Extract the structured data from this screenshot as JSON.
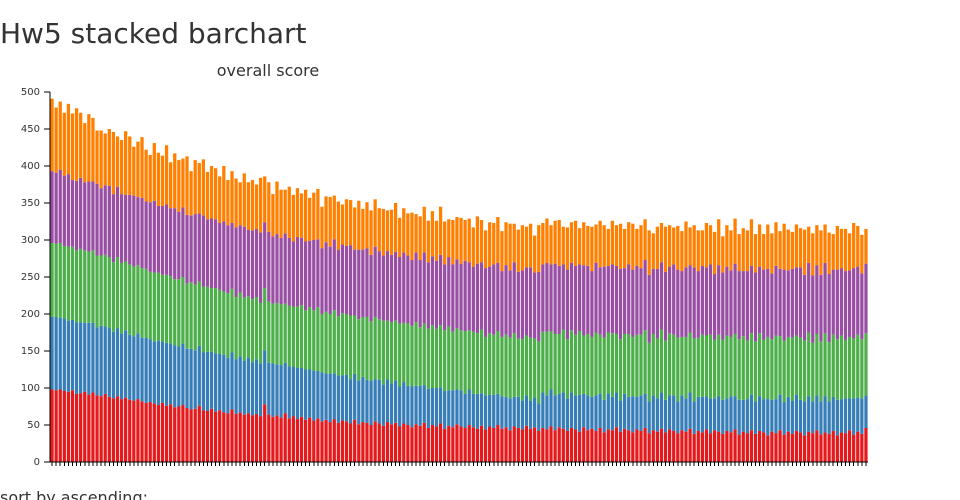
{
  "chart_data": {
    "type": "stacked_bar",
    "title": "Hw5 stacked barchart",
    "subtitle": "overall score",
    "footer": "sort by ascending:",
    "categories": [
      null,
      null,
      null,
      null,
      null,
      null,
      null,
      null,
      null,
      null,
      null,
      null,
      null,
      null,
      null,
      null,
      null,
      null,
      null,
      null,
      null,
      null,
      null,
      null,
      null,
      null,
      null,
      null,
      null,
      null,
      null,
      null,
      null,
      null,
      null,
      null,
      null,
      null,
      null,
      null,
      null,
      null,
      null,
      null,
      null,
      null,
      null,
      null,
      null,
      null,
      null,
      null,
      null,
      null,
      null,
      null,
      null,
      null,
      null,
      null,
      null,
      null,
      null,
      null,
      null,
      null,
      null,
      null,
      null,
      null,
      null,
      null,
      null,
      null,
      null,
      null,
      null,
      null,
      null,
      null,
      null,
      null,
      null,
      null,
      null,
      null,
      null,
      null,
      null,
      null,
      null,
      null,
      null,
      null,
      null,
      null,
      null,
      null,
      null,
      null,
      null,
      null,
      null,
      null,
      null,
      null,
      null,
      null,
      null,
      null,
      null,
      null,
      null,
      null,
      null,
      null,
      null,
      null,
      null,
      null,
      null,
      null,
      null,
      null,
      null,
      null,
      null,
      null,
      null,
      null,
      null,
      null,
      null,
      null,
      null,
      null,
      null,
      null,
      null,
      null,
      null,
      null,
      null,
      null,
      null,
      null,
      null,
      null,
      null,
      null,
      null,
      null,
      null,
      null,
      null,
      null,
      null,
      null,
      null,
      null,
      null,
      null,
      null,
      null,
      null,
      null,
      null,
      null,
      null,
      null,
      null,
      null,
      null,
      null,
      null,
      null,
      null,
      null,
      null,
      null,
      null,
      null,
      null,
      null,
      null,
      null,
      null,
      null,
      null,
      null,
      null,
      null,
      null,
      null,
      null,
      null,
      null,
      null,
      null,
      null
    ],
    "series": [
      {
        "color": "#e41a1c",
        "values": [
          98,
          97,
          98,
          96,
          95,
          97,
          92,
          93,
          95,
          91,
          94,
          90,
          89,
          92,
          88,
          86,
          89,
          85,
          87,
          84,
          83,
          85,
          82,
          80,
          81,
          79,
          77,
          80,
          76,
          78,
          74,
          75,
          77,
          73,
          71,
          72,
          76,
          70,
          69,
          72,
          68,
          70,
          67,
          66,
          71,
          65,
          67,
          64,
          66,
          63,
          65,
          62,
          78,
          64,
          61,
          63,
          60,
          66,
          59,
          62,
          58,
          61,
          57,
          60,
          56,
          59,
          55,
          57,
          54,
          58,
          53,
          56,
          55,
          52,
          57,
          51,
          54,
          53,
          50,
          55,
          52,
          49,
          54,
          51,
          53,
          48,
          52,
          50,
          47,
          51,
          49,
          53,
          46,
          50,
          48,
          52,
          45,
          49,
          47,
          51,
          48,
          46,
          50,
          47,
          45,
          49,
          44,
          48,
          46,
          50,
          45,
          47,
          43,
          48,
          46,
          44,
          49,
          45,
          47,
          42,
          46,
          44,
          48,
          43,
          47,
          45,
          42,
          46,
          44,
          41,
          47,
          43,
          45,
          42,
          46,
          40,
          44,
          43,
          47,
          41,
          45,
          43,
          40,
          44,
          42,
          46,
          39,
          43,
          41,
          45,
          40,
          44,
          42,
          39,
          43,
          41,
          45,
          38,
          42,
          40,
          44,
          39,
          43,
          41,
          38,
          42,
          40,
          44,
          37,
          41,
          39,
          43,
          38,
          42,
          40,
          36,
          41,
          39,
          43,
          37,
          41,
          38,
          42,
          40,
          36,
          41,
          39,
          43,
          37,
          40,
          38,
          42,
          36,
          40,
          39,
          43,
          37,
          41,
          38,
          46
        ]
      },
      {
        "color": "#377eb8",
        "values": [
          98,
          99,
          97,
          98,
          96,
          95,
          97,
          96,
          93,
          97,
          94,
          92,
          95,
          91,
          93,
          90,
          92,
          89,
          91,
          88,
          87,
          89,
          86,
          88,
          85,
          84,
          87,
          83,
          85,
          82,
          84,
          81,
          83,
          80,
          82,
          79,
          81,
          78,
          80,
          77,
          79,
          76,
          78,
          75,
          77,
          74,
          76,
          73,
          75,
          72,
          74,
          71,
          73,
          70,
          72,
          69,
          71,
          68,
          70,
          67,
          69,
          66,
          68,
          65,
          67,
          64,
          66,
          63,
          65,
          62,
          64,
          61,
          63,
          60,
          62,
          59,
          61,
          58,
          60,
          57,
          59,
          56,
          58,
          55,
          57,
          54,
          56,
          53,
          55,
          52,
          54,
          51,
          53,
          50,
          52,
          49,
          51,
          48,
          50,
          47,
          49,
          46,
          48,
          45,
          47,
          44,
          46,
          43,
          45,
          42,
          44,
          41,
          43,
          40,
          42,
          39,
          41,
          38,
          40,
          37,
          48,
          46,
          50,
          47,
          45,
          49,
          44,
          48,
          46,
          50,
          45,
          47,
          43,
          48,
          46,
          44,
          49,
          45,
          47,
          42,
          47,
          45,
          49,
          44,
          48,
          46,
          43,
          47,
          45,
          49,
          44,
          46,
          48,
          43,
          47,
          45,
          49,
          44,
          46,
          48,
          45,
          47,
          43,
          48,
          46,
          44,
          49,
          45,
          47,
          43,
          46,
          48,
          44,
          47,
          45,
          49,
          43,
          46,
          48,
          44,
          47,
          45,
          49,
          44,
          46,
          48,
          43,
          47,
          45,
          49,
          44,
          46,
          48,
          45,
          47,
          43,
          49,
          46,
          48,
          44
        ]
      },
      {
        "color": "#4daf4a",
        "values": [
          100,
          99,
          101,
          98,
          100,
          99,
          97,
          99,
          98,
          96,
          98,
          97,
          95,
          97,
          96,
          94,
          96,
          95,
          93,
          95,
          94,
          92,
          94,
          93,
          91,
          93,
          92,
          90,
          92,
          91,
          89,
          91,
          90,
          88,
          90,
          89,
          87,
          89,
          88,
          86,
          88,
          87,
          85,
          87,
          86,
          84,
          86,
          85,
          83,
          85,
          84,
          82,
          84,
          83,
          81,
          83,
          82,
          80,
          82,
          81,
          83,
          85,
          80,
          84,
          82,
          86,
          79,
          83,
          81,
          85,
          80,
          84,
          82,
          86,
          79,
          83,
          81,
          85,
          80,
          84,
          82,
          86,
          79,
          83,
          81,
          85,
          80,
          84,
          82,
          86,
          79,
          83,
          81,
          85,
          80,
          84,
          82,
          86,
          79,
          83,
          81,
          85,
          80,
          84,
          82,
          86,
          79,
          83,
          81,
          85,
          80,
          84,
          82,
          86,
          79,
          83,
          81,
          85,
          80,
          84,
          82,
          86,
          79,
          83,
          81,
          85,
          80,
          84,
          82,
          86,
          79,
          83,
          81,
          85,
          80,
          84,
          82,
          86,
          79,
          83,
          81,
          85,
          80,
          84,
          82,
          86,
          79,
          83,
          81,
          85,
          80,
          84,
          82,
          86,
          79,
          83,
          81,
          85,
          80,
          84,
          82,
          86,
          79,
          83,
          81,
          85,
          80,
          84,
          82,
          86,
          79,
          83,
          81,
          85,
          80,
          84,
          82,
          86,
          79,
          83,
          81,
          85,
          80,
          84,
          82,
          86,
          79,
          83,
          81,
          85,
          80,
          84,
          82,
          86,
          79,
          83,
          81,
          85,
          80,
          84
        ]
      },
      {
        "color": "#984ea3",
        "values": [
          97,
          96,
          99,
          95,
          98,
          90,
          94,
          96,
          92,
          95,
          93,
          97,
          91,
          94,
          96,
          92,
          95,
          93,
          90,
          94,
          96,
          92,
          95,
          91,
          94,
          97,
          90,
          93,
          95,
          92,
          96,
          91,
          94,
          93,
          90,
          95,
          92,
          96,
          91,
          94,
          93,
          90,
          95,
          92,
          89,
          94,
          91,
          96,
          90,
          93,
          92,
          95,
          89,
          94,
          91,
          93,
          90,
          95,
          92,
          88,
          94,
          91,
          93,
          90,
          95,
          92,
          89,
          94,
          91,
          96,
          90,
          93,
          92,
          95,
          89,
          94,
          91,
          93,
          90,
          95,
          92,
          88,
          94,
          91,
          93,
          90,
          95,
          92,
          89,
          94,
          91,
          96,
          90,
          93,
          92,
          95,
          89,
          94,
          91,
          93,
          90,
          95,
          92,
          88,
          94,
          91,
          93,
          90,
          95,
          92,
          89,
          94,
          91,
          96,
          90,
          93,
          92,
          95,
          89,
          94,
          91,
          93,
          90,
          95,
          92,
          88,
          94,
          91,
          93,
          90,
          95,
          92,
          89,
          94,
          91,
          96,
          90,
          93,
          92,
          95,
          89,
          94,
          91,
          93,
          90,
          95,
          92,
          88,
          94,
          91,
          93,
          90,
          95,
          92,
          89,
          94,
          91,
          96,
          90,
          93,
          92,
          95,
          89,
          94,
          91,
          93,
          90,
          95,
          92,
          88,
          94,
          91,
          93,
          90,
          95,
          92,
          89,
          94,
          91,
          96,
          90,
          93,
          92,
          95,
          89,
          94,
          91,
          93,
          90,
          95,
          92,
          88,
          94,
          91,
          93,
          90,
          95,
          92,
          89,
          94
        ]
      },
      {
        "color": "#ff7f00",
        "values": [
          98,
          88,
          92,
          85,
          95,
          90,
          98,
          88,
          80,
          91,
          86,
          72,
          78,
          70,
          77,
          84,
          68,
          73,
          86,
          79,
          66,
          75,
          82,
          70,
          64,
          78,
          72,
          68,
          80,
          62,
          74,
          70,
          66,
          79,
          60,
          73,
          68,
          76,
          64,
          71,
          69,
          63,
          75,
          61,
          70,
          66,
          58,
          72,
          64,
          68,
          60,
          74,
          62,
          67,
          57,
          71,
          65,
          59,
          69,
          63,
          66,
          60,
          70,
          58,
          64,
          68,
          56,
          62,
          67,
          59,
          65,
          54,
          63,
          61,
          57,
          66,
          55,
          62,
          60,
          64,
          58,
          63,
          55,
          61,
          66,
          53,
          60,
          57,
          64,
          52,
          59,
          62,
          56,
          61,
          54,
          65,
          58,
          51,
          60,
          57,
          62,
          55,
          59,
          53,
          64,
          57,
          51,
          60,
          56,
          62,
          54,
          58,
          63,
          52,
          57,
          61,
          55,
          59,
          50,
          63,
          56,
          60,
          53,
          58,
          62,
          51,
          57,
          55,
          61,
          49,
          58,
          54,
          60,
          52,
          63,
          56,
          50,
          59,
          55,
          61,
          53,
          57,
          62,
          50,
          58,
          55,
          60,
          48,
          57,
          53,
          61,
          56,
          50,
          59,
          54,
          62,
          51,
          57,
          55,
          48,
          60,
          53,
          57,
          62,
          49,
          56,
          54,
          61,
          50,
          58,
          55,
          63,
          52,
          57,
          48,
          60,
          54,
          59,
          51,
          62,
          55,
          50,
          58,
          53,
          61,
          49,
          57,
          54,
          60,
          52,
          56,
          48,
          59,
          53,
          57,
          50,
          61,
          55,
          52,
          47
        ]
      }
    ],
    "ylim": [
      0,
      500
    ],
    "yticks": [
      0,
      50,
      100,
      150,
      200,
      250,
      300,
      350,
      400,
      450,
      500
    ]
  }
}
